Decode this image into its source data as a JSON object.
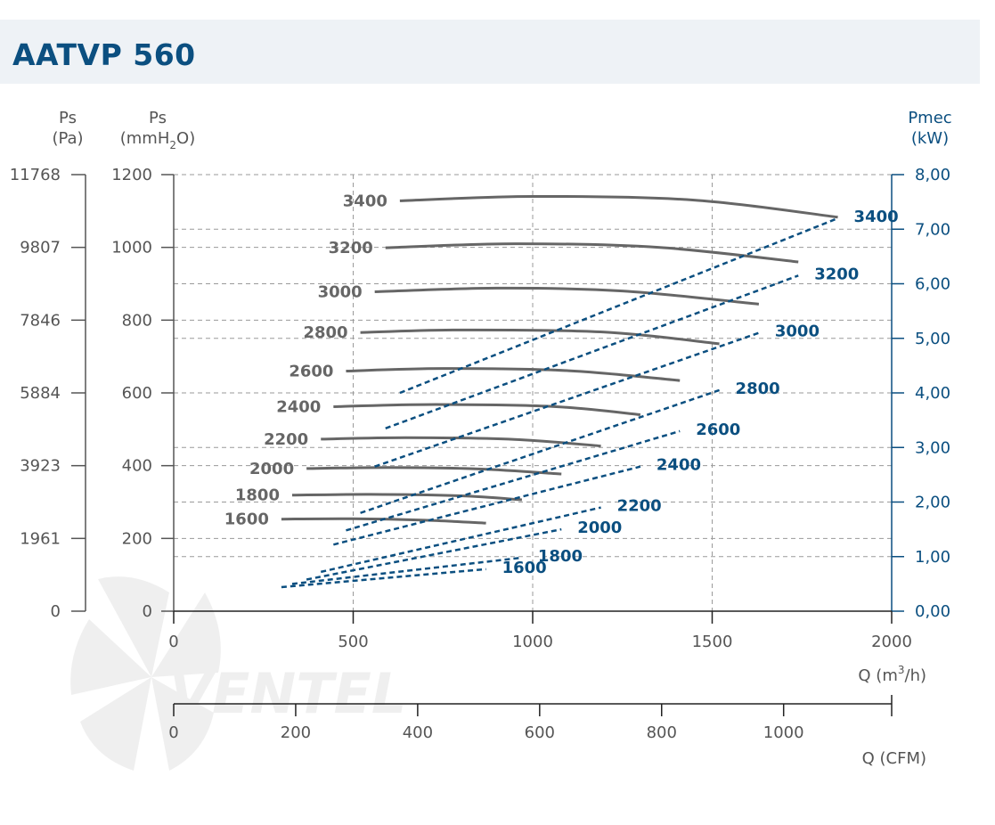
{
  "title": "AATVP 560",
  "chart_data": {
    "type": "line",
    "title": "AATVP 560",
    "xlabel": "Q (m³/h)",
    "xlabel_parts": {
      "pre": "Q (m",
      "sup": "3",
      "post": "/h)"
    },
    "x2label": "Q (CFM)",
    "xlim": [
      0,
      2000
    ],
    "x_ticks": [
      "0",
      "500",
      "1000",
      "1500",
      "2000"
    ],
    "x2_ticks": [
      {
        "label": "0",
        "cfm": 0
      },
      {
        "label": "200",
        "cfm": 200
      },
      {
        "label": "400",
        "cfm": 400
      },
      {
        "label": "600",
        "cfm": 600
      },
      {
        "label": "800",
        "cfm": 800
      },
      {
        "label": "1000",
        "cfm": 1000
      }
    ],
    "ylim": [
      0,
      1200
    ],
    "y_pa_label": {
      "line1": "Ps",
      "line2": "(Pa)"
    },
    "y_mm_label": {
      "line1": "Ps",
      "pre": "(mmH",
      "sub": "2",
      "post": "O)"
    },
    "y_kw_label": {
      "line1": "Pmec",
      "line2": "(kW)"
    },
    "y_mm_ticks": [
      {
        "label": "0",
        "v": 0
      },
      {
        "label": "200",
        "v": 200
      },
      {
        "label": "400",
        "v": 400
      },
      {
        "label": "600",
        "v": 600
      },
      {
        "label": "800",
        "v": 800
      },
      {
        "label": "1000",
        "v": 1000
      },
      {
        "label": "1200",
        "v": 1200
      }
    ],
    "y_pa_ticks": [
      "0",
      "1961",
      "3923",
      "5884",
      "7846",
      "9807",
      "11768"
    ],
    "y_kw_lim": [
      0,
      8
    ],
    "y_kw_ticks": [
      {
        "label": "0,00",
        "v": 0
      },
      {
        "label": "1,00",
        "v": 1
      },
      {
        "label": "2,00",
        "v": 2
      },
      {
        "label": "3,00",
        "v": 3
      },
      {
        "label": "4,00",
        "v": 4
      },
      {
        "label": "5,00",
        "v": 5
      },
      {
        "label": "6,00",
        "v": 6
      },
      {
        "label": "7,00",
        "v": 7
      },
      {
        "label": "8,00",
        "v": 8
      }
    ],
    "pressure_series": [
      {
        "name": "1600",
        "x": [
          300,
          500,
          700,
          870
        ],
        "y": [
          253,
          254,
          250,
          242
        ]
      },
      {
        "name": "1800",
        "x": [
          330,
          550,
          800,
          970
        ],
        "y": [
          319,
          321,
          317,
          306
        ]
      },
      {
        "name": "2000",
        "x": [
          370,
          600,
          850,
          1080
        ],
        "y": [
          392,
          395,
          391,
          377
        ]
      },
      {
        "name": "2200",
        "x": [
          410,
          650,
          950,
          1190
        ],
        "y": [
          473,
          477,
          472,
          454
        ]
      },
      {
        "name": "2400",
        "x": [
          445,
          700,
          1050,
          1300
        ],
        "y": [
          562,
          568,
          563,
          540
        ]
      },
      {
        "name": "2600",
        "x": [
          480,
          750,
          1100,
          1410
        ],
        "y": [
          660,
          667,
          661,
          634
        ]
      },
      {
        "name": "2800",
        "x": [
          520,
          800,
          1200,
          1520
        ],
        "y": [
          766,
          773,
          767,
          735
        ]
      },
      {
        "name": "3000",
        "x": [
          560,
          900,
          1250,
          1630
        ],
        "y": [
          878,
          888,
          880,
          844
        ]
      },
      {
        "name": "3200",
        "x": [
          590,
          950,
          1350,
          1740
        ],
        "y": [
          999,
          1010,
          1000,
          960
        ]
      },
      {
        "name": "3400",
        "x": [
          630,
          1000,
          1450,
          1850
        ],
        "y": [
          1128,
          1140,
          1130,
          1083
        ]
      }
    ],
    "power_series": [
      {
        "name": "1600",
        "x": [
          300,
          870
        ],
        "kw": [
          0.44,
          0.77
        ]
      },
      {
        "name": "1800",
        "x": [
          330,
          970
        ],
        "kw": [
          0.5,
          0.98
        ]
      },
      {
        "name": "2000",
        "x": [
          370,
          1080
        ],
        "kw": [
          0.58,
          1.5
        ]
      },
      {
        "name": "2200",
        "x": [
          410,
          1190
        ],
        "kw": [
          0.72,
          1.9
        ]
      },
      {
        "name": "2400",
        "x": [
          445,
          1300
        ],
        "kw": [
          1.22,
          2.65
        ]
      },
      {
        "name": "2600",
        "x": [
          480,
          1410
        ],
        "kw": [
          1.48,
          3.3
        ]
      },
      {
        "name": "2800",
        "x": [
          520,
          1520
        ],
        "kw": [
          1.8,
          4.05
        ]
      },
      {
        "name": "3000",
        "x": [
          560,
          1630
        ],
        "kw": [
          2.65,
          5.1
        ]
      },
      {
        "name": "3200",
        "x": [
          590,
          1740
        ],
        "kw": [
          3.35,
          6.15
        ]
      },
      {
        "name": "3400",
        "x": [
          630,
          1850
        ],
        "kw": [
          4.0,
          7.2
        ]
      }
    ],
    "colors": {
      "pressure": "#666666",
      "power": "#0b4f80",
      "title": "#0b4f80",
      "axis": "#555555"
    }
  }
}
